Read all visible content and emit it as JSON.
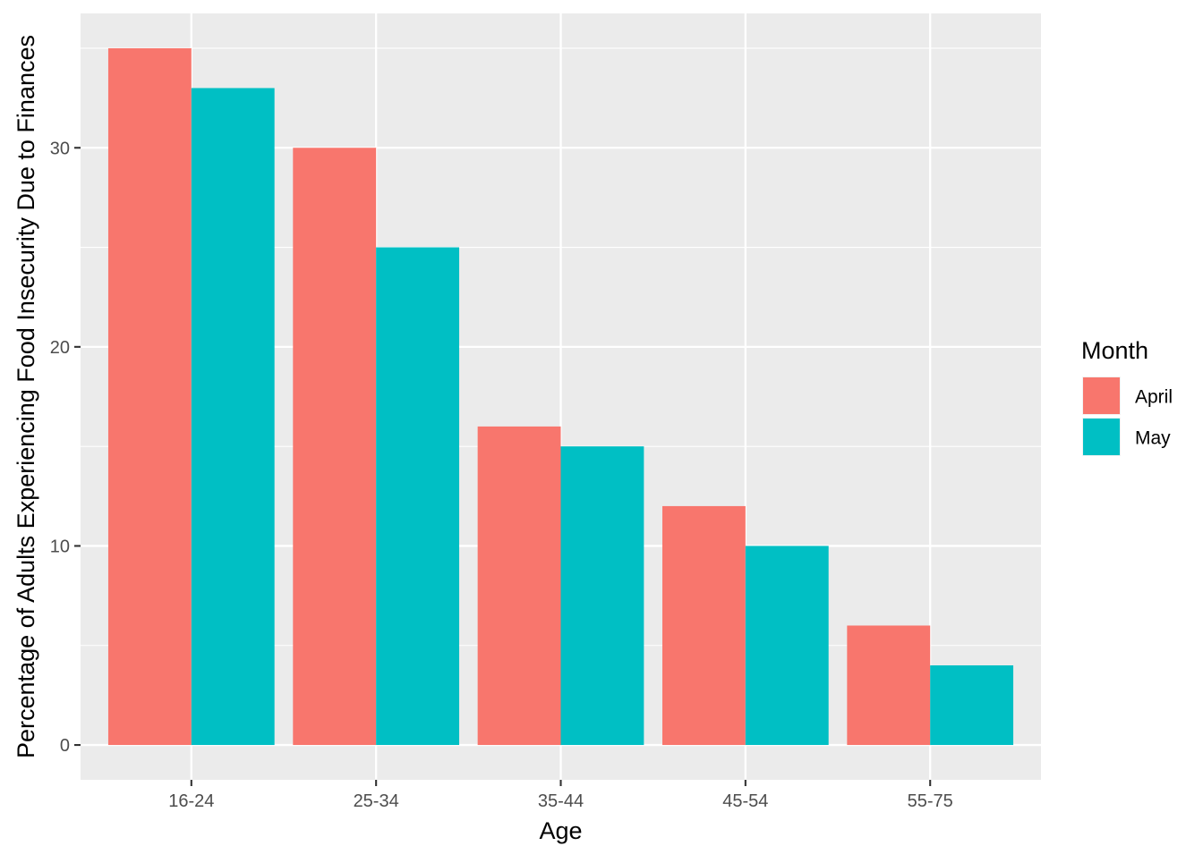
{
  "chart_data": {
    "type": "bar",
    "title": "",
    "xlabel": "Age",
    "ylabel": "Percentage of Adults Experiencing Food Insecurity Due to Finances",
    "categories": [
      "16-24",
      "25-34",
      "35-44",
      "45-54",
      "55-75"
    ],
    "series": [
      {
        "name": "April",
        "color": "#F8766D",
        "values": [
          35,
          30,
          16,
          12,
          6
        ]
      },
      {
        "name": "May",
        "color": "#00BFC4",
        "values": [
          33,
          25,
          15,
          10,
          4
        ]
      }
    ],
    "ylim": [
      -1.75,
      36.75
    ],
    "yticks": [
      0,
      10,
      20,
      30
    ],
    "grid": true,
    "legend": {
      "title": "Month",
      "position": "right"
    }
  }
}
